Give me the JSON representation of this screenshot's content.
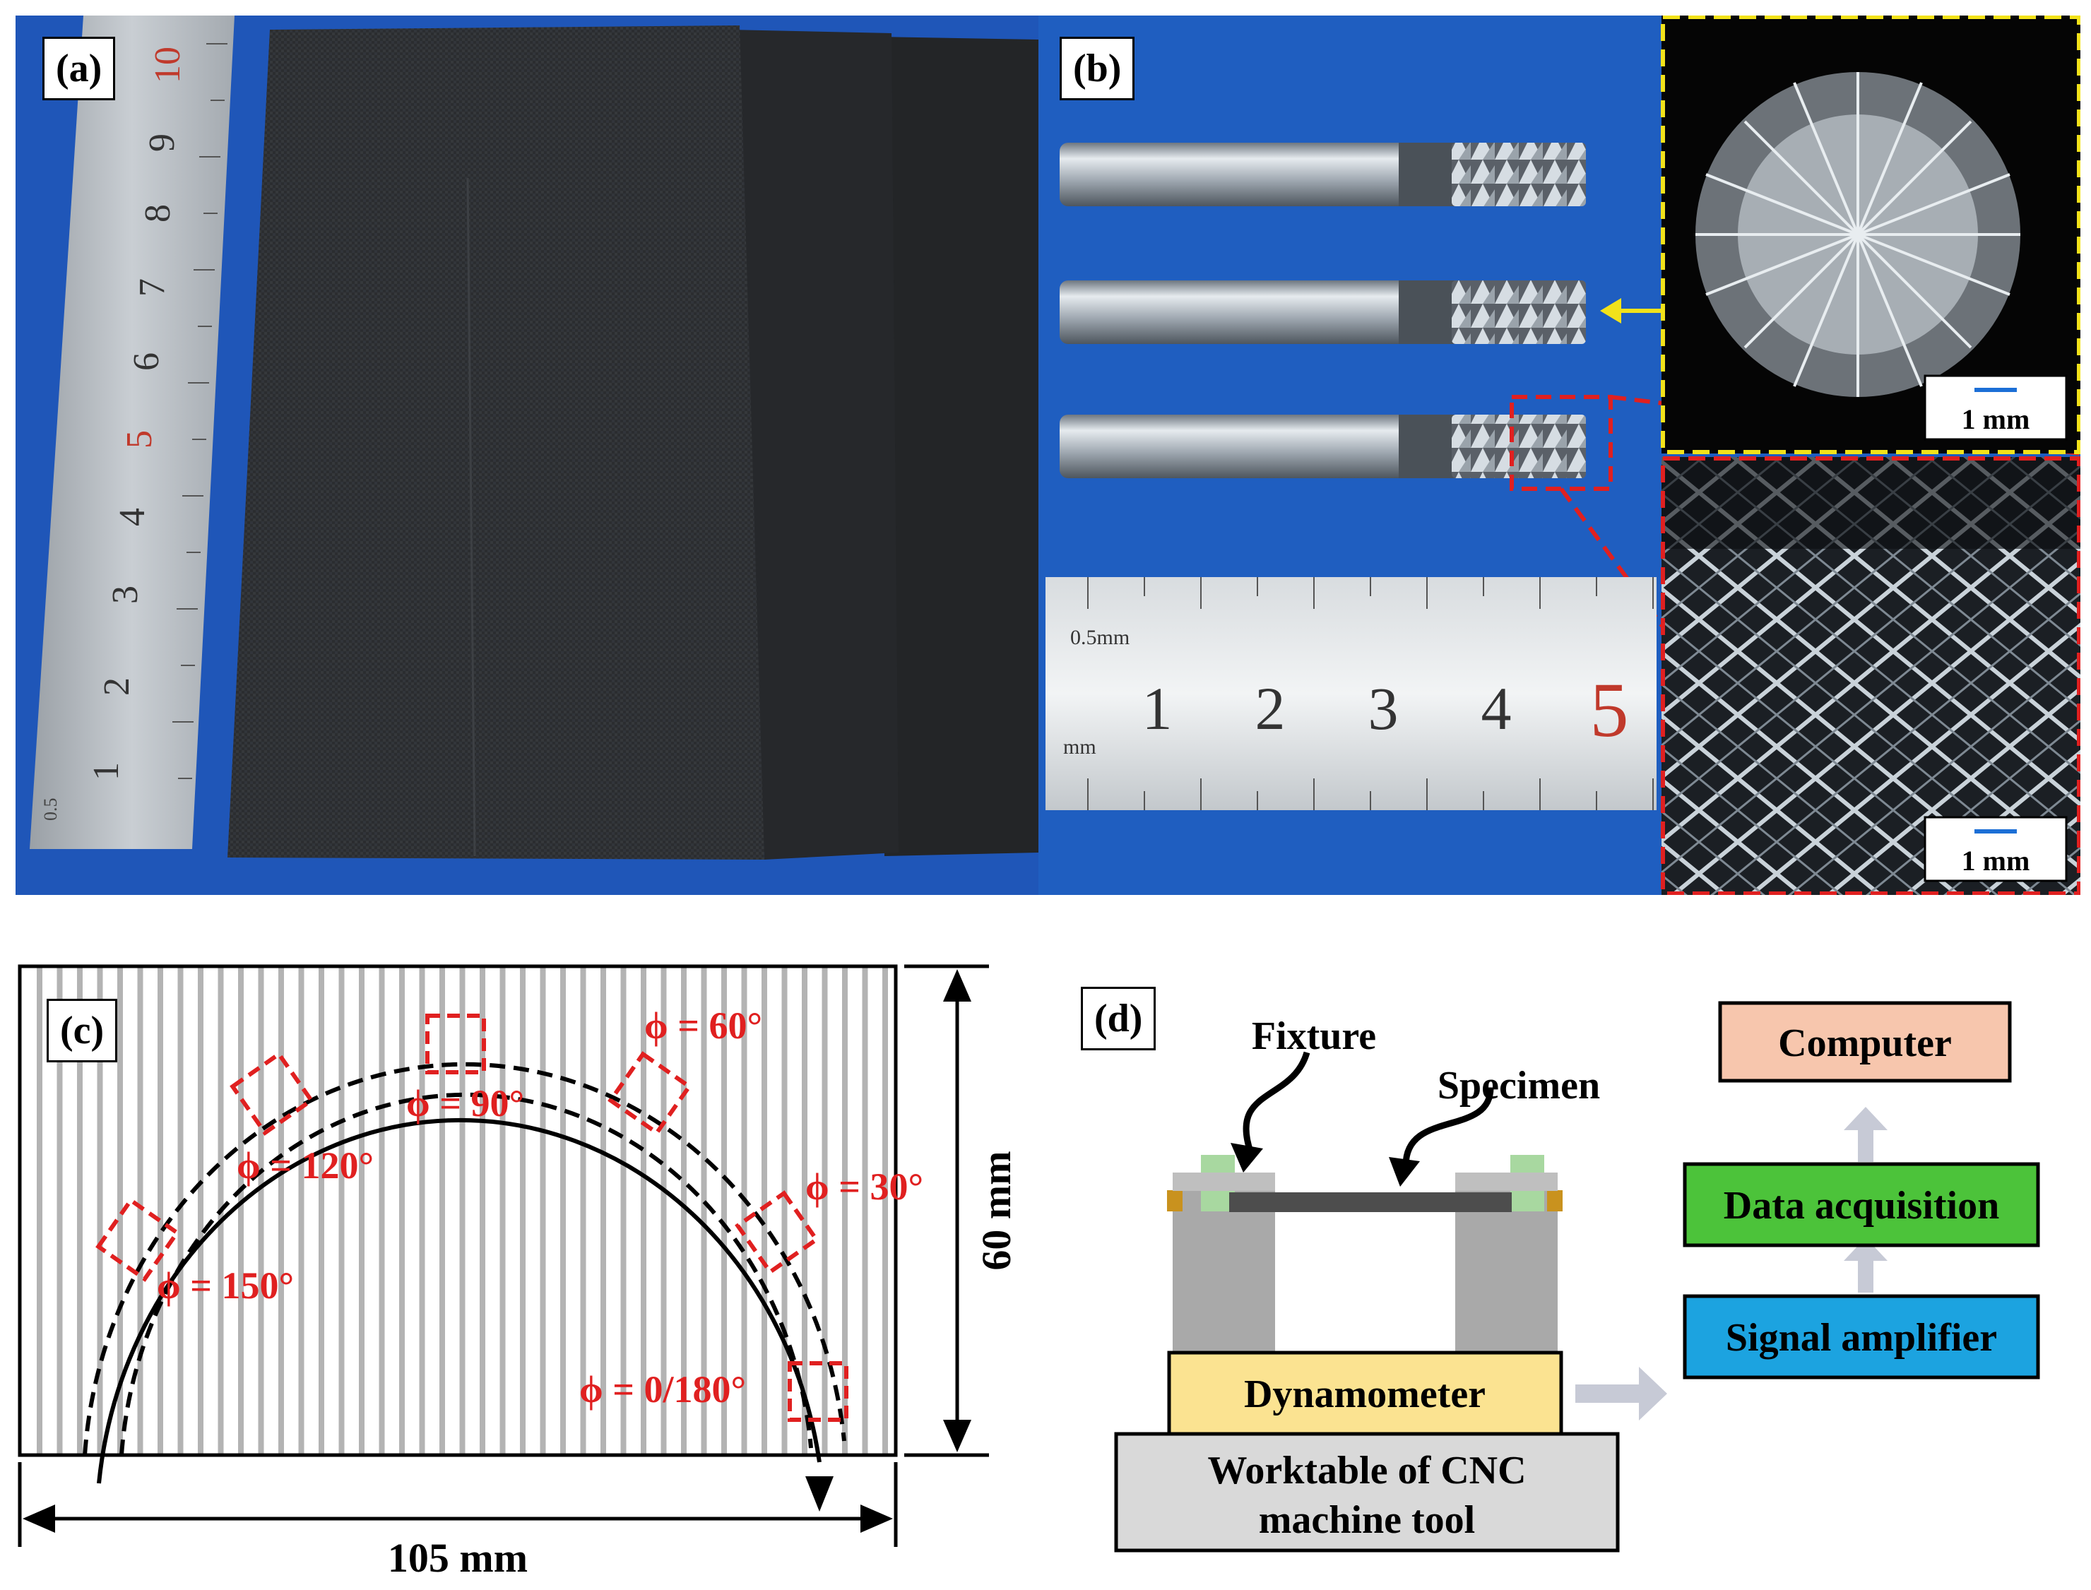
{
  "panels": {
    "a": {
      "label": "(a)",
      "ruler_numbers": [
        "1",
        "2",
        "3",
        "4",
        "5",
        "6",
        "7",
        "8",
        "9",
        "10"
      ],
      "ruler_small": "0.5"
    },
    "b": {
      "label": "(b)",
      "ruler_numbers": [
        "1",
        "2",
        "3",
        "4",
        "5"
      ],
      "ruler_top_unit": "0.5mm",
      "ruler_bottom_unit": "mm",
      "scalebar_top": "1 mm",
      "scalebar_bottom": "1 mm"
    },
    "c": {
      "label": "(c)",
      "angles": [
        "ϕ = 60°",
        "ϕ = 90°",
        "ϕ = 120°",
        "ϕ = 30°",
        "ϕ = 150°",
        "ϕ = 0/180°"
      ],
      "width_dim": "105 mm",
      "height_dim": "60 mm"
    },
    "d": {
      "label": "(d)",
      "fixture": "Fixture",
      "specimen": "Specimen",
      "dynamometer": "Dynamometer",
      "worktable_line1": "Worktable of CNC",
      "worktable_line2": "machine tool",
      "computer": "Computer",
      "data_acquisition": "Data acquisition",
      "signal_amplifier": "Signal amplifier"
    }
  },
  "colors": {
    "photo_background_blue": "#1f56b8",
    "carbon_sheet": "#2a2c2e",
    "dashed_box_red": "#e02020",
    "dashed_box_yellow": "#f2e21a",
    "computer_box": "#f7c6ad",
    "data_acquisition_box": "#4cc33a",
    "signal_amplifier_box": "#1ca3e0",
    "dynamometer_box": "#fbe391"
  }
}
